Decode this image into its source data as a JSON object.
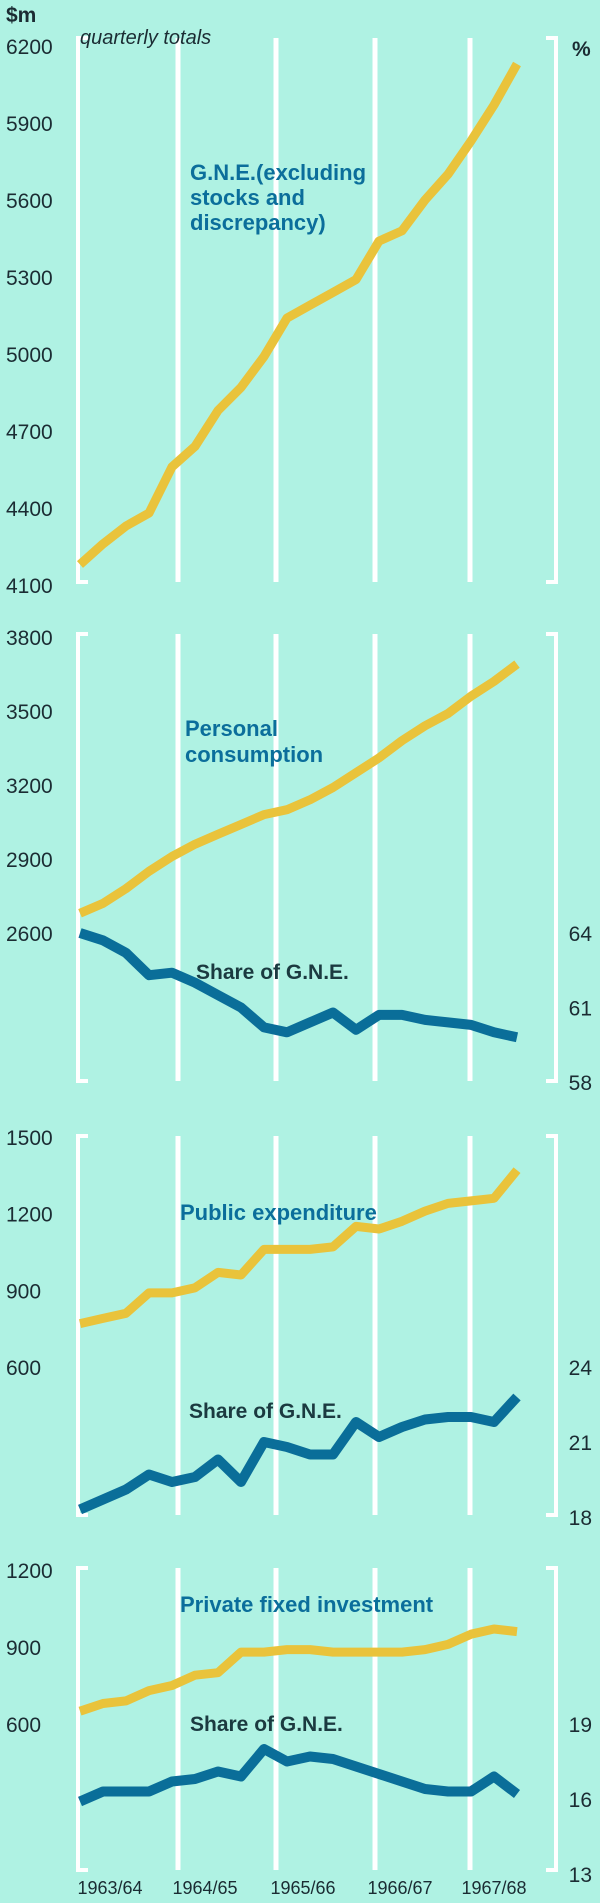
{
  "header": {
    "unit_left": "$m",
    "unit_right": "%",
    "note": "quarterly totals"
  },
  "colors": {
    "background": "#aff2e3",
    "value_line": "#e9c33b",
    "share_line": "#0a6e99",
    "title_text": "#0b6e9b",
    "grid": "#ffffff"
  },
  "x_labels": [
    "1963/64",
    "1964/65",
    "1965/66",
    "1966/67",
    "1967/68"
  ],
  "chart_data": [
    {
      "type": "line",
      "title": [
        "G.N.E.(excluding",
        "stocks and",
        "discrepancy)"
      ],
      "x": [
        "1963/64 Q1",
        "1963/64 Q2",
        "1963/64 Q3",
        "1963/64 Q4",
        "1964/65 Q1",
        "1964/65 Q2",
        "1964/65 Q3",
        "1964/65 Q4",
        "1965/66 Q1",
        "1965/66 Q2",
        "1965/66 Q3",
        "1965/66 Q4",
        "1966/67 Q1",
        "1966/67 Q2",
        "1966/67 Q3",
        "1966/67 Q4",
        "1967/68 Q1",
        "1967/68 Q2",
        "1967/68 Q3",
        "1967/68 Q4"
      ],
      "y_ticks": [
        6200,
        5900,
        5600,
        5300,
        5000,
        4700,
        4400,
        4100
      ],
      "ylim": [
        4100,
        6200
      ],
      "series": [
        {
          "values": [
            4180,
            4260,
            4330,
            4380,
            4560,
            4640,
            4780,
            4870,
            4990,
            5140,
            5190,
            5240,
            5290,
            5440,
            5480,
            5600,
            5700,
            5830,
            5970,
            6130
          ]
        }
      ]
    },
    {
      "type": "line",
      "title": [
        "Personal",
        "consumption"
      ],
      "share_label": "Share of G.N.E.",
      "x": [
        "1963/64 Q1",
        "1963/64 Q2",
        "1963/64 Q3",
        "1963/64 Q4",
        "1964/65 Q1",
        "1964/65 Q2",
        "1964/65 Q3",
        "1964/65 Q4",
        "1965/66 Q1",
        "1965/66 Q2",
        "1965/66 Q3",
        "1965/66 Q4",
        "1966/67 Q1",
        "1966/67 Q2",
        "1966/67 Q3",
        "1966/67 Q4",
        "1967/68 Q1",
        "1967/68 Q2",
        "1967/68 Q3",
        "1967/68 Q4"
      ],
      "y_ticks": [
        3800,
        3500,
        3200,
        2900,
        2600
      ],
      "ylim": [
        2300,
        3800
      ],
      "y2_ticks": [
        64,
        61,
        58
      ],
      "y2lim": [
        58,
        65
      ],
      "series": [
        {
          "values": [
            2680,
            2720,
            2780,
            2850,
            2910,
            2960,
            3000,
            3040,
            3080,
            3100,
            3140,
            3190,
            3250,
            3310,
            3380,
            3440,
            3490,
            3560,
            3620,
            3690
          ]
        },
        {
          "values": [
            64.0,
            63.7,
            63.2,
            62.3,
            62.4,
            62.0,
            61.5,
            61.0,
            60.2,
            60.0,
            60.4,
            60.8,
            60.1,
            60.7,
            60.7,
            60.5,
            60.4,
            60.3,
            60.0,
            59.8
          ]
        }
      ]
    },
    {
      "type": "line",
      "title": [
        "Public expenditure"
      ],
      "share_label": "Share of G.N.E.",
      "x": [
        "1963/64 Q1",
        "1963/64 Q2",
        "1963/64 Q3",
        "1963/64 Q4",
        "1964/65 Q1",
        "1964/65 Q2",
        "1964/65 Q3",
        "1964/65 Q4",
        "1965/66 Q1",
        "1965/66 Q2",
        "1965/66 Q3",
        "1965/66 Q4",
        "1966/67 Q1",
        "1966/67 Q2",
        "1966/67 Q3",
        "1966/67 Q4",
        "1967/68 Q1",
        "1967/68 Q2",
        "1967/68 Q3",
        "1967/68 Q4"
      ],
      "y_ticks": [
        1500,
        1200,
        900,
        600
      ],
      "ylim": [
        300,
        1500
      ],
      "y2_ticks": [
        24,
        21,
        18
      ],
      "y2lim": [
        18,
        25.5
      ],
      "series": [
        {
          "values": [
            770,
            790,
            810,
            890,
            890,
            910,
            970,
            960,
            1060,
            1060,
            1060,
            1070,
            1150,
            1140,
            1170,
            1210,
            1240,
            1250,
            1260,
            1370
          ]
        },
        {
          "values": [
            18.3,
            18.7,
            19.1,
            19.7,
            19.4,
            19.6,
            20.3,
            19.4,
            21.0,
            20.8,
            20.5,
            20.5,
            21.8,
            21.2,
            21.6,
            21.9,
            22.0,
            22.0,
            21.8,
            22.8
          ]
        }
      ]
    },
    {
      "type": "line",
      "title": [
        "Private fixed investment"
      ],
      "share_label": "Share of G.N.E.",
      "x": [
        "1963/64 Q1",
        "1963/64 Q2",
        "1963/64 Q3",
        "1963/64 Q4",
        "1964/65 Q1",
        "1964/65 Q2",
        "1964/65 Q3",
        "1964/65 Q4",
        "1965/66 Q1",
        "1965/66 Q2",
        "1965/66 Q3",
        "1965/66 Q4",
        "1966/67 Q1",
        "1966/67 Q2",
        "1966/67 Q3",
        "1966/67 Q4",
        "1967/68 Q1",
        "1967/68 Q2",
        "1967/68 Q3",
        "1967/68 Q4"
      ],
      "y_ticks": [
        1200,
        900,
        600
      ],
      "ylim": [
        360,
        1200
      ],
      "y2_ticks": [
        19,
        16,
        13
      ],
      "y2lim": [
        13,
        22
      ],
      "series": [
        {
          "values": [
            650,
            680,
            690,
            730,
            750,
            790,
            800,
            880,
            880,
            890,
            890,
            880,
            880,
            880,
            880,
            890,
            910,
            950,
            970,
            960
          ]
        },
        {
          "values": [
            15.9,
            16.3,
            16.3,
            16.3,
            16.7,
            16.8,
            17.1,
            16.9,
            18.0,
            17.5,
            17.7,
            17.6,
            17.3,
            17.0,
            16.7,
            16.4,
            16.3,
            16.3,
            16.9,
            16.2
          ]
        }
      ]
    }
  ]
}
